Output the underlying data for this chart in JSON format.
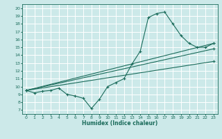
{
  "xlabel": "Humidex (Indice chaleur)",
  "ylabel": "",
  "xlim": [
    -0.5,
    23.5
  ],
  "ylim": [
    6.5,
    20.5
  ],
  "xticks": [
    0,
    1,
    2,
    3,
    4,
    5,
    6,
    7,
    8,
    9,
    10,
    11,
    12,
    13,
    14,
    15,
    16,
    17,
    18,
    19,
    20,
    21,
    22,
    23
  ],
  "yticks": [
    7,
    8,
    9,
    10,
    11,
    12,
    13,
    14,
    15,
    16,
    17,
    18,
    19,
    20
  ],
  "bg_color": "#cce9e9",
  "line_color": "#1a6b5a",
  "grid_color": "#ffffff",
  "lines": [
    {
      "x": [
        0,
        1,
        2,
        3,
        4,
        5,
        6,
        7,
        8,
        9,
        10,
        11,
        12,
        13,
        14,
        15,
        16,
        17,
        18,
        19,
        20,
        21,
        22,
        23
      ],
      "y": [
        9.5,
        9.2,
        9.4,
        9.5,
        9.8,
        9.0,
        8.8,
        8.5,
        7.2,
        8.4,
        10.0,
        10.5,
        11.0,
        12.9,
        14.5,
        18.8,
        19.3,
        19.5,
        18.0,
        16.5,
        15.5,
        15.0,
        15.0,
        15.5
      ]
    },
    {
      "x": [
        0,
        23
      ],
      "y": [
        9.5,
        15.5
      ]
    },
    {
      "x": [
        0,
        23
      ],
      "y": [
        9.5,
        14.8
      ]
    },
    {
      "x": [
        0,
        23
      ],
      "y": [
        9.5,
        13.2
      ]
    }
  ]
}
